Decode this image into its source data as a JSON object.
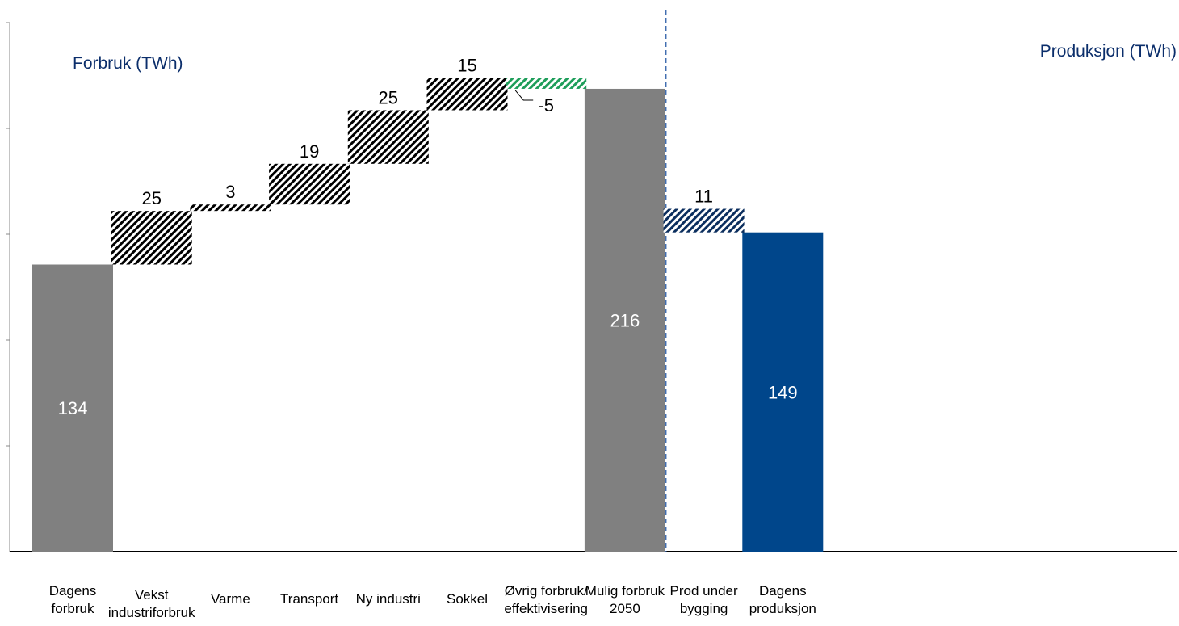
{
  "section_titles": {
    "left": "Forbruk (TWh)",
    "right": "Produksjon (TWh)"
  },
  "colors": {
    "total_bar": "#808080",
    "production_bar": "#00468B",
    "increase_hatch": "#000000",
    "decrease_hatch": "#1E9E5A",
    "production_hatch": "#0B2E5E",
    "title_text": "#0B2E6B",
    "divider": "#2E5FA8"
  },
  "chart_data": {
    "type": "bar",
    "variant": "waterfall",
    "title": "",
    "xlabel": "",
    "ylabel": "",
    "ylim": [
      0,
      250
    ],
    "grid": false,
    "y_tick_labels": false,
    "categories": [
      {
        "lines": [
          "Dagens",
          "forbruk"
        ]
      },
      {
        "lines": [
          "Vekst",
          "industriforbruk"
        ]
      },
      {
        "lines": [
          "Varme"
        ]
      },
      {
        "lines": [
          "Transport"
        ]
      },
      {
        "lines": [
          "Ny industri"
        ]
      },
      {
        "lines": [
          "Sokkel"
        ]
      },
      {
        "lines": [
          "Øvrig forbruk/",
          "effektivisering"
        ]
      },
      {
        "lines": [
          "Mulig forbruk",
          "2050"
        ]
      },
      {
        "lines": [
          "Prod under",
          "bygging"
        ]
      },
      {
        "lines": [
          "Dagens",
          "produksjon"
        ]
      }
    ],
    "steps": [
      {
        "kind": "total",
        "value": 134,
        "label": "134",
        "section": "forbruk"
      },
      {
        "kind": "delta",
        "value": 25,
        "label": "25",
        "section": "forbruk"
      },
      {
        "kind": "delta",
        "value": 3,
        "label": "3",
        "section": "forbruk"
      },
      {
        "kind": "delta",
        "value": 19,
        "label": "19",
        "section": "forbruk"
      },
      {
        "kind": "delta",
        "value": 25,
        "label": "25",
        "section": "forbruk"
      },
      {
        "kind": "delta",
        "value": 15,
        "label": "15",
        "section": "forbruk"
      },
      {
        "kind": "delta",
        "value": -5,
        "label": "-5",
        "section": "forbruk"
      },
      {
        "kind": "total",
        "value": 216,
        "label": "216",
        "section": "forbruk"
      },
      {
        "kind": "production_delta",
        "value": 11,
        "label": "11",
        "section": "produksjon"
      },
      {
        "kind": "production_total",
        "value": 149,
        "label": "149",
        "section": "produksjon"
      }
    ]
  }
}
